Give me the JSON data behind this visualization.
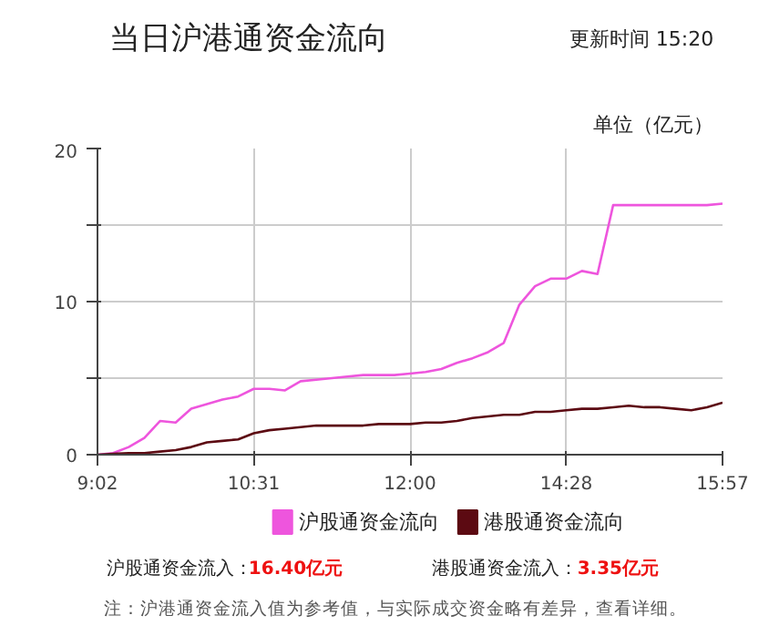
{
  "chart_data": {
    "type": "line",
    "title": "当日沪港通资金流向",
    "subtitle": "更新时间 15:20",
    "ylabel": "单位（亿元）",
    "categories": [
      "9:02",
      null,
      null,
      null,
      null,
      null,
      null,
      null,
      null,
      null,
      "10:31",
      null,
      null,
      null,
      null,
      null,
      null,
      null,
      null,
      null,
      "12:00",
      null,
      null,
      null,
      null,
      null,
      null,
      null,
      null,
      null,
      "14:28",
      null,
      null,
      null,
      null,
      null,
      null,
      null,
      null,
      null,
      "15:57"
    ],
    "ylim": [
      0,
      20
    ],
    "yticks": [
      0,
      {
        "value": 5,
        "label": null
      },
      10,
      {
        "value": 15,
        "label": null
      },
      20
    ],
    "grid": true,
    "legend": "bottom",
    "marker": "none",
    "line_style": "solid",
    "series": [
      {
        "name": "沪股通资金流向",
        "color": "#ee55dd",
        "values": [
          0,
          0.1,
          0.5,
          1.1,
          2.2,
          2.1,
          3.0,
          3.3,
          3.6,
          3.8,
          4.3,
          4.3,
          4.2,
          4.8,
          4.9,
          5.0,
          5.1,
          5.2,
          5.2,
          5.2,
          5.3,
          5.4,
          5.6,
          6.0,
          6.3,
          6.7,
          7.3,
          9.8,
          11.0,
          11.5,
          11.5,
          12.0,
          11.8,
          16.3,
          16.3,
          16.3,
          16.3,
          16.3,
          16.3,
          16.3,
          16.4
        ]
      },
      {
        "name": "港股通资金流向",
        "color": "#5c0a12",
        "values": [
          0,
          0.05,
          0.1,
          0.1,
          0.2,
          0.3,
          0.5,
          0.8,
          0.9,
          1.0,
          1.4,
          1.6,
          1.7,
          1.8,
          1.9,
          1.9,
          1.9,
          1.9,
          2.0,
          2.0,
          2.0,
          2.1,
          2.1,
          2.2,
          2.4,
          2.5,
          2.6,
          2.6,
          2.8,
          2.8,
          2.9,
          3.0,
          3.0,
          3.1,
          3.2,
          3.1,
          3.1,
          3.0,
          2.9,
          3.1,
          3.4
        ]
      }
    ],
    "annotations": [
      "沪股通资金流入：",
      "16.40亿元",
      "港股通资金流入：",
      "3.35亿元",
      "注：沪港通资金流入值为参考值，与实际成交资金略有差异，查看详细。"
    ]
  }
}
